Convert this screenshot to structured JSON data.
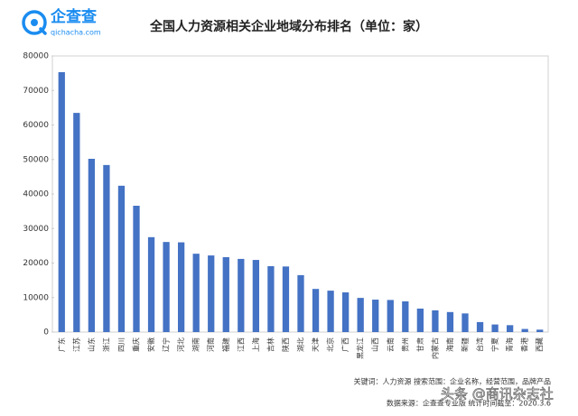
{
  "chart_data": {
    "type": "bar",
    "logo": {
      "name": "企查查",
      "site": "qichacha.com"
    },
    "title": "全国人力资源相关企业地域分布排名（单位：家）",
    "categories": [
      "广东",
      "江苏",
      "山东",
      "浙江",
      "四川",
      "重庆",
      "安徽",
      "辽宁",
      "河北",
      "湖南",
      "河南",
      "福建",
      "江西",
      "上海",
      "吉林",
      "陕西",
      "湖北",
      "天津",
      "北京",
      "广西",
      "黑龙江",
      "山西",
      "云南",
      "贵州",
      "甘肃",
      "内蒙古",
      "海南",
      "新疆",
      "台湾",
      "宁夏",
      "青海",
      "香港",
      "西藏"
    ],
    "values": [
      75300,
      63500,
      50200,
      48400,
      42400,
      36600,
      27500,
      26100,
      26000,
      22700,
      22200,
      21700,
      21200,
      20900,
      19100,
      19000,
      16500,
      12500,
      12000,
      11500,
      9900,
      9400,
      9300,
      8900,
      6800,
      6300,
      5800,
      5400,
      2900,
      2200,
      2000,
      900,
      700
    ],
    "color": "#4472c4",
    "ylim": [
      0,
      80000
    ],
    "yticks": [
      0,
      10000,
      20000,
      30000,
      40000,
      50000,
      60000,
      70000,
      80000
    ],
    "grid": false,
    "notes": [
      "关键词：人力资源 搜索范围：企业名称，经营范围，品牌产品",
      "数据来源：企查查专业版  统计时间截至：2020.3.6"
    ],
    "watermark": "头条 @商讯杂志社"
  }
}
